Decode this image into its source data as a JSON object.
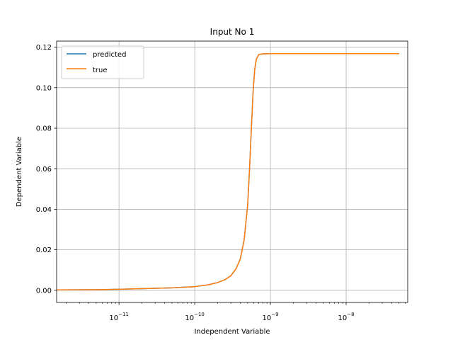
{
  "chart_data": {
    "type": "line",
    "title": "Input No 1",
    "xlabel": "Independent Variable",
    "ylabel": "Dependent Variable",
    "x_scale": "log",
    "xlim": [
      1.5e-12,
      6.5e-08
    ],
    "ylim": [
      -0.006,
      0.123
    ],
    "grid": true,
    "legend_position": "top-left",
    "x_ticks": [
      {
        "value": 1e-11,
        "base": "10",
        "exp": "−11"
      },
      {
        "value": 1e-10,
        "base": "10",
        "exp": "−10"
      },
      {
        "value": 1e-09,
        "base": "10",
        "exp": "−9"
      },
      {
        "value": 1e-08,
        "base": "10",
        "exp": "−8"
      }
    ],
    "y_ticks": [
      {
        "value": 0.0,
        "label": "0.00"
      },
      {
        "value": 0.02,
        "label": "0.02"
      },
      {
        "value": 0.04,
        "label": "0.04"
      },
      {
        "value": 0.06,
        "label": "0.06"
      },
      {
        "value": 0.08,
        "label": "0.08"
      },
      {
        "value": 0.1,
        "label": "0.10"
      },
      {
        "value": 0.12,
        "label": "0.12"
      }
    ],
    "series": [
      {
        "name": "predicted",
        "color": "#1f77b4",
        "x": [
          1.5e-12,
          5e-12,
          1e-11,
          2e-11,
          5e-11,
          1e-10,
          1.5e-10,
          2e-10,
          2.5e-10,
          3e-10,
          3.5e-10,
          4e-10,
          4.5e-10,
          5e-10,
          5.3e-10,
          5.6e-10,
          5.9e-10,
          6.2e-10,
          6.5e-10,
          7e-10,
          8e-10,
          1e-09,
          2e-09,
          1e-08,
          5e-08
        ],
        "y": [
          0.0002,
          0.0003,
          0.0005,
          0.0008,
          0.0012,
          0.0018,
          0.0027,
          0.0038,
          0.0052,
          0.0072,
          0.0105,
          0.0155,
          0.025,
          0.042,
          0.06,
          0.08,
          0.098,
          0.109,
          0.114,
          0.1163,
          0.1167,
          0.1168,
          0.1168,
          0.1168,
          0.1168
        ]
      },
      {
        "name": "true",
        "color": "#ff7f0e",
        "x": [
          1.5e-12,
          5e-12,
          1e-11,
          2e-11,
          5e-11,
          1e-10,
          1.5e-10,
          2e-10,
          2.5e-10,
          3e-10,
          3.5e-10,
          4e-10,
          4.5e-10,
          5e-10,
          5.3e-10,
          5.6e-10,
          5.9e-10,
          6.2e-10,
          6.5e-10,
          7e-10,
          8e-10,
          1e-09,
          2e-09,
          1e-08,
          5e-08
        ],
        "y": [
          0.0002,
          0.0003,
          0.0005,
          0.0008,
          0.0012,
          0.0018,
          0.0027,
          0.0038,
          0.0052,
          0.0072,
          0.0105,
          0.0155,
          0.025,
          0.042,
          0.06,
          0.08,
          0.098,
          0.109,
          0.114,
          0.1163,
          0.1167,
          0.1168,
          0.1168,
          0.1168,
          0.1168
        ]
      }
    ]
  }
}
